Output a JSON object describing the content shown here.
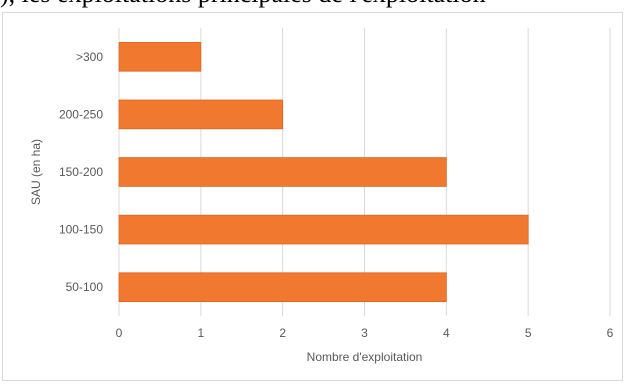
{
  "header_text": "), les exploitations principales de l'exploitation",
  "chart_data": {
    "type": "bar",
    "orientation": "horizontal",
    "categories": [
      "50-100",
      "100-150",
      "150-200",
      "200-250",
      ">300"
    ],
    "values": [
      4,
      5,
      4,
      2,
      1
    ],
    "xlabel": "Nombre d'exploitation",
    "ylabel": "SAU (en ha)",
    "xlim": [
      0,
      6
    ],
    "xticks": [
      "0",
      "1",
      "2",
      "3",
      "4",
      "5",
      "6"
    ],
    "grid": "vertical",
    "colors": {
      "bar": "#F0782F",
      "bar_edge": "#E2651E",
      "grid": "#d9d9d9",
      "text": "#595959"
    }
  }
}
